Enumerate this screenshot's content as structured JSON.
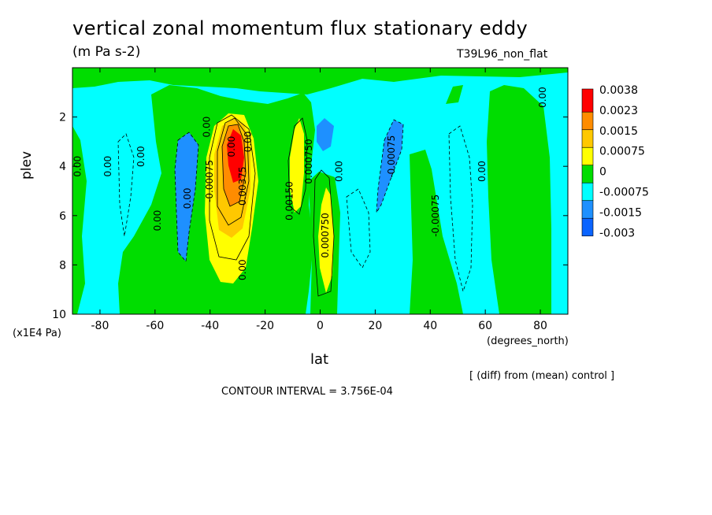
{
  "chart_data": {
    "type": "heatmap",
    "title": "vertical zonal momentum flux stationary eddy",
    "units": "(m Pa s-2)",
    "experiment": "T39L96_non_flat",
    "xlabel": "lat",
    "xunit": "(degrees_north)",
    "ylabel": "plev",
    "yunit": "(x1E4 Pa)",
    "xlim": [
      -90,
      90
    ],
    "ylim": [
      10,
      0
    ],
    "xticks": [
      "-80",
      "-60",
      "-40",
      "-20",
      "0",
      "20",
      "40",
      "60",
      "80"
    ],
    "yticks": [
      "2",
      "4",
      "6",
      "8",
      "10"
    ],
    "colorbar": {
      "levels": [
        "0.0038",
        "0.0023",
        "0.0015",
        "0.00075",
        "0",
        "-0.00075",
        "-0.0015",
        "-0.003"
      ],
      "colors": [
        "#ff0000",
        "#ff8c00",
        "#ffc800",
        "#ffff00",
        "#00dd00",
        "#00ffff",
        "#1e90ff",
        "#0a64ff"
      ]
    },
    "features": [
      {
        "name": "positive maximum",
        "lat": -30,
        "plev": 3.7,
        "value": 0.0038
      },
      {
        "name": "positive lobe",
        "lat": -8,
        "plev": 5,
        "value": 0.00075
      },
      {
        "name": "positive lobe",
        "lat": 3,
        "plev": 7.5,
        "value": 0.00075
      },
      {
        "name": "negative lobe",
        "lat": -50,
        "plev": 5.5,
        "value": -0.0015
      },
      {
        "name": "negative lobe",
        "lat": 25,
        "plev": 3.8,
        "value": -0.0015
      },
      {
        "name": "negative lobe",
        "lat": 2,
        "plev": 3,
        "value": -0.0015
      }
    ],
    "contour_labels": [
      "0.00",
      "0.00",
      "0.00",
      "0.00",
      "0.00",
      "-0.00075",
      "0.00",
      "0.00375",
      "0.00150",
      "0.000750",
      "0.00",
      "0.00",
      "-0.00075",
      "0.00",
      "0.000750",
      "0.00",
      "-0.00075",
      "0.00",
      "0.00"
    ]
  },
  "notes": {
    "diff": "[ (diff) from (mean) control ]",
    "contour_interval": "CONTOUR INTERVAL = 3.756E-04"
  }
}
